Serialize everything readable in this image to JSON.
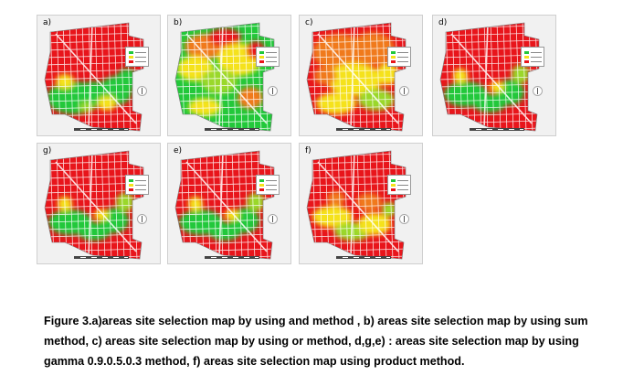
{
  "panels": [
    {
      "label": "a)",
      "scheme": "and"
    },
    {
      "label": "b)",
      "scheme": "sum"
    },
    {
      "label": "c)",
      "scheme": "or"
    },
    {
      "label": "d)",
      "scheme": "gamma"
    },
    {
      "label": "g)",
      "scheme": "gamma"
    },
    {
      "label": "e)",
      "scheme": "gamma"
    },
    {
      "label": "f)",
      "scheme": "product"
    }
  ],
  "colors": {
    "high": "#e8151b",
    "orange": "#f07a1c",
    "yellow": "#f5e21a",
    "light_green": "#9ad82a",
    "green": "#22c83a",
    "road": "#ffffff",
    "background": "#f1f1f1"
  },
  "caption": "Figure 3.a)areas site selection map by using and method , b) areas site selection map by using sum method, c) areas site selection map by using or method, d,g,e) : areas site selection map by using gamma 0.9.0.5.0.3 method, f) areas site selection map using product method."
}
